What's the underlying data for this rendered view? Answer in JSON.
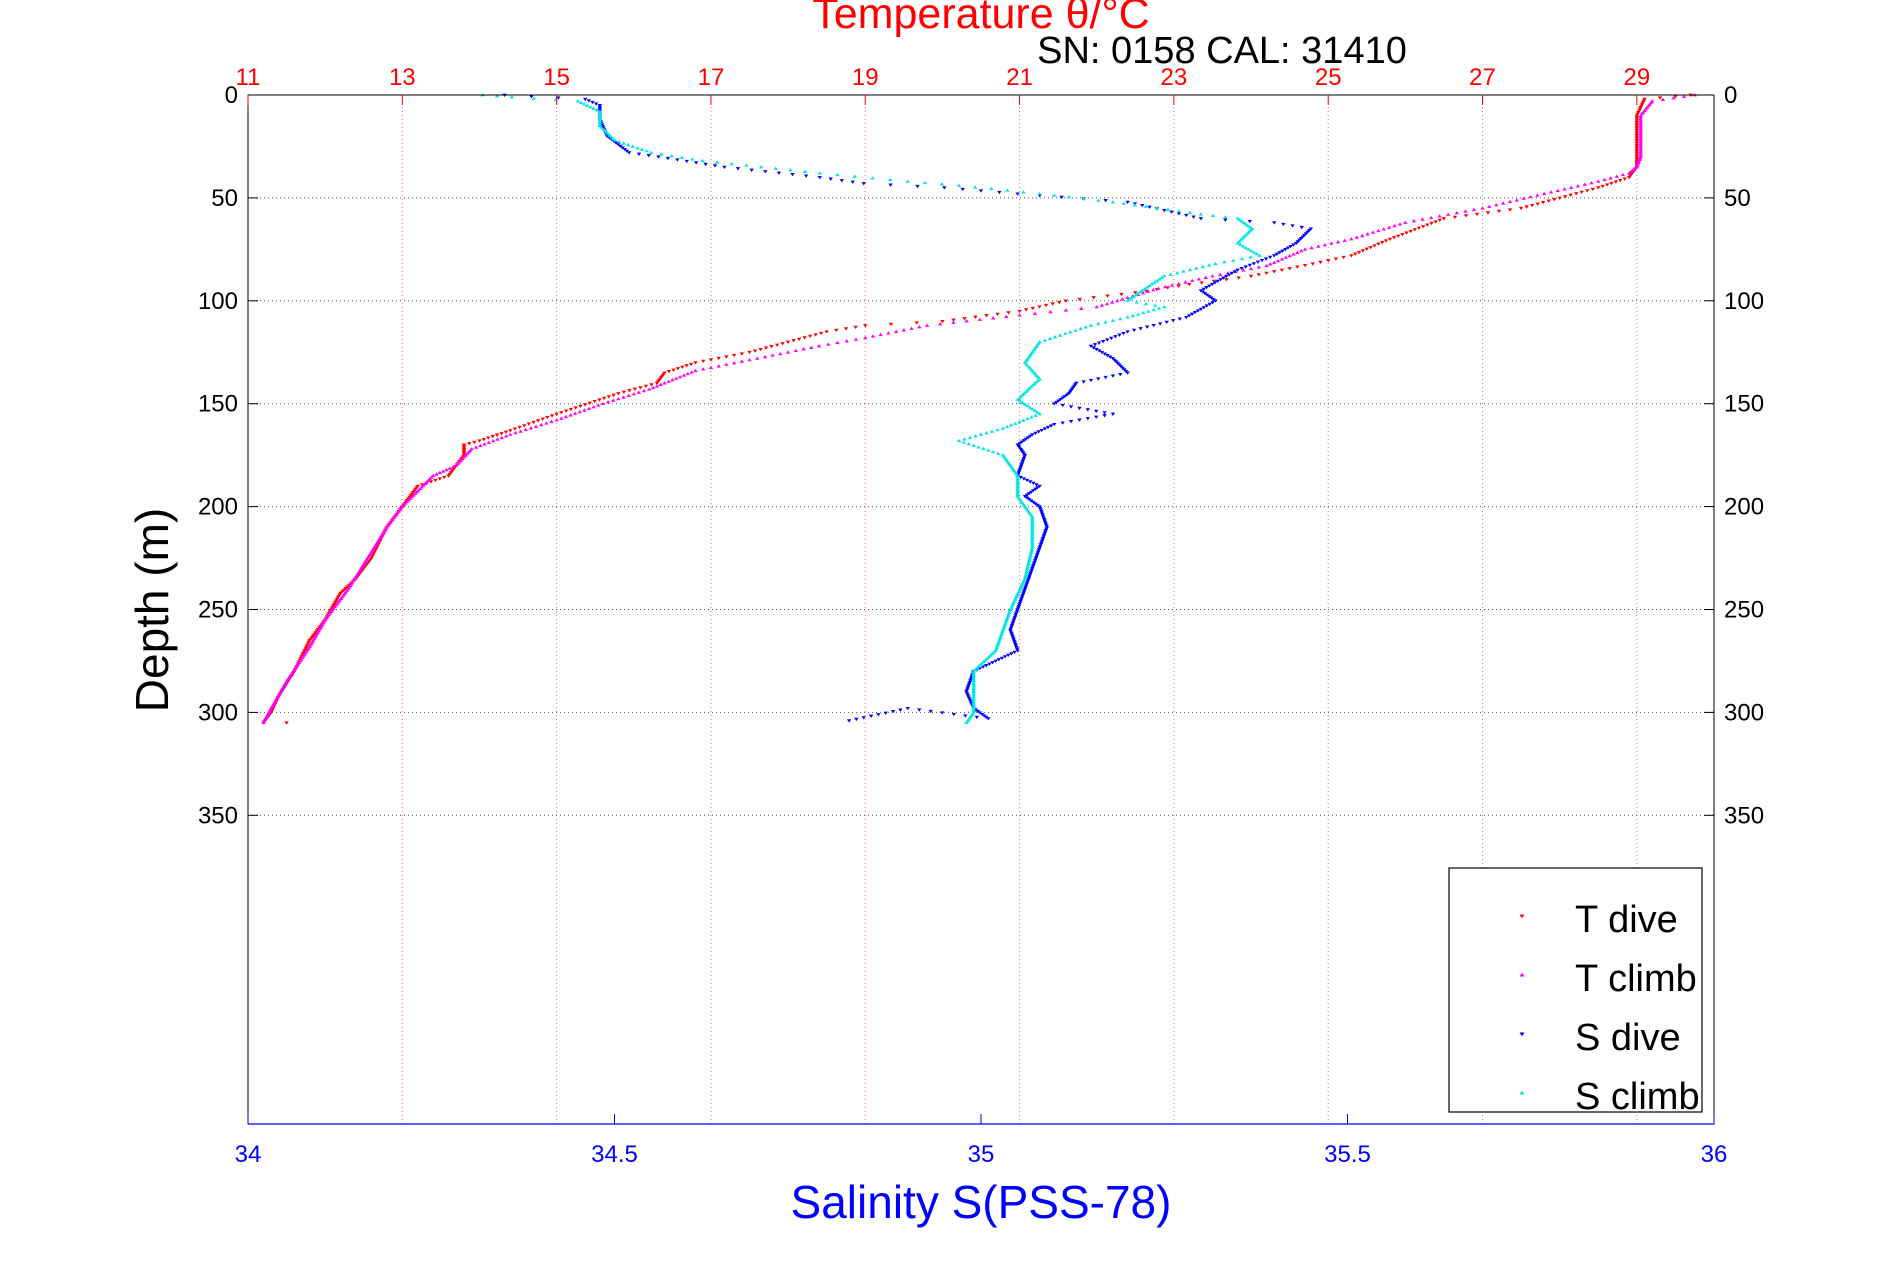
{
  "chart_data": {
    "type": "scatter",
    "top_axis": {
      "label": "Temperature θ/°C",
      "range": [
        11,
        30
      ],
      "ticks": [
        "11",
        "13",
        "15",
        "17",
        "19",
        "21",
        "23",
        "25",
        "27",
        "29"
      ],
      "tick_values": [
        11,
        13,
        15,
        17,
        19,
        21,
        23,
        25,
        27,
        29
      ],
      "color": "#ff0000"
    },
    "bottom_axis": {
      "label": "Salinity S(PSS-78)",
      "range": [
        34,
        36
      ],
      "ticks": [
        "34",
        "34.5",
        "35",
        "35.5",
        "36"
      ],
      "tick_values": [
        34,
        34.5,
        35,
        35.5,
        36
      ],
      "color": "#0000ff"
    },
    "y_axis": {
      "label": "Depth (m)",
      "range": [
        0,
        500
      ],
      "reversed": true,
      "ticks": [
        "0",
        "50",
        "100",
        "150",
        "200",
        "250",
        "300",
        "350"
      ],
      "tick_values": [
        0,
        50,
        100,
        150,
        200,
        250,
        300,
        350
      ]
    },
    "annotation": "SN: 0158  CAL: 31410",
    "grid": true,
    "legend_position": "bottom-right",
    "series": [
      {
        "name": "T dive",
        "axis": "temperature",
        "color": "#ff0000",
        "marker": "triangle-down",
        "points": [
          [
            29.7,
            0
          ],
          [
            29.1,
            2
          ],
          [
            29.0,
            10
          ],
          [
            29.0,
            30
          ],
          [
            29.0,
            35
          ],
          [
            28.9,
            40
          ],
          [
            28.5,
            45
          ],
          [
            28.0,
            50
          ],
          [
            27.5,
            55
          ],
          [
            26.5,
            60
          ],
          [
            25.8,
            70
          ],
          [
            25.3,
            78
          ],
          [
            24.8,
            82
          ],
          [
            24.0,
            88
          ],
          [
            23.2,
            92
          ],
          [
            22.5,
            96
          ],
          [
            21.6,
            100
          ],
          [
            21.0,
            105
          ],
          [
            20.0,
            110
          ],
          [
            19.0,
            112
          ],
          [
            18.5,
            115
          ],
          [
            18.0,
            120
          ],
          [
            17.5,
            125
          ],
          [
            16.8,
            130
          ],
          [
            16.4,
            135
          ],
          [
            16.3,
            140
          ],
          [
            15.8,
            145
          ],
          [
            15.0,
            155
          ],
          [
            14.4,
            163
          ],
          [
            14.0,
            168
          ],
          [
            13.8,
            170
          ],
          [
            13.8,
            175
          ],
          [
            13.6,
            185
          ],
          [
            13.2,
            190
          ],
          [
            13.0,
            200
          ],
          [
            12.8,
            210
          ],
          [
            12.6,
            225
          ],
          [
            12.4,
            235
          ],
          [
            12.2,
            242
          ],
          [
            12.0,
            255
          ],
          [
            11.8,
            265
          ],
          [
            11.6,
            280
          ],
          [
            11.4,
            292
          ],
          [
            11.3,
            300
          ],
          [
            11.2,
            305
          ],
          [
            11.5,
            305
          ]
        ]
      },
      {
        "name": "T climb",
        "axis": "temperature",
        "color": "#ff00ff",
        "marker": "triangle-up",
        "points": [
          [
            29.75,
            0
          ],
          [
            29.2,
            3
          ],
          [
            29.05,
            10
          ],
          [
            29.05,
            30
          ],
          [
            29.0,
            35
          ],
          [
            28.9,
            38
          ],
          [
            28.5,
            42
          ],
          [
            27.8,
            48
          ],
          [
            27.0,
            55
          ],
          [
            26.0,
            62
          ],
          [
            25.3,
            70
          ],
          [
            24.7,
            75
          ],
          [
            24.2,
            83
          ],
          [
            23.5,
            88
          ],
          [
            22.8,
            94
          ],
          [
            22.0,
            103
          ],
          [
            21.0,
            107
          ],
          [
            19.8,
            112
          ],
          [
            19.0,
            118
          ],
          [
            18.4,
            122
          ],
          [
            17.6,
            128
          ],
          [
            16.8,
            134
          ],
          [
            16.2,
            143
          ],
          [
            15.6,
            150
          ],
          [
            15.0,
            158
          ],
          [
            14.4,
            165
          ],
          [
            13.9,
            172
          ],
          [
            13.7,
            180
          ],
          [
            13.4,
            185
          ],
          [
            13.0,
            200
          ],
          [
            12.8,
            210
          ],
          [
            12.5,
            228
          ],
          [
            12.3,
            240
          ],
          [
            12.0,
            255
          ],
          [
            11.8,
            268
          ],
          [
            11.5,
            285
          ],
          [
            11.3,
            298
          ],
          [
            11.2,
            305
          ]
        ]
      },
      {
        "name": "S dive",
        "axis": "salinity",
        "color": "#0000ff",
        "marker": "triangle-down",
        "points": [
          [
            34.35,
            0
          ],
          [
            34.46,
            2
          ],
          [
            34.48,
            5
          ],
          [
            34.48,
            12
          ],
          [
            34.49,
            20
          ],
          [
            34.52,
            28
          ],
          [
            34.56,
            30
          ],
          [
            34.65,
            35
          ],
          [
            34.78,
            40
          ],
          [
            34.84,
            43
          ],
          [
            34.95,
            45
          ],
          [
            35.05,
            48
          ],
          [
            35.2,
            52
          ],
          [
            35.3,
            60
          ],
          [
            35.4,
            62
          ],
          [
            35.45,
            65
          ],
          [
            35.43,
            72
          ],
          [
            35.4,
            78
          ],
          [
            35.35,
            85
          ],
          [
            35.3,
            95
          ],
          [
            35.32,
            100
          ],
          [
            35.28,
            108
          ],
          [
            35.2,
            115
          ],
          [
            35.15,
            122
          ],
          [
            35.18,
            128
          ],
          [
            35.2,
            135
          ],
          [
            35.13,
            140
          ],
          [
            35.12,
            145
          ],
          [
            35.1,
            150
          ],
          [
            35.18,
            155
          ],
          [
            35.1,
            160
          ],
          [
            35.07,
            165
          ],
          [
            35.05,
            170
          ],
          [
            35.06,
            175
          ],
          [
            35.05,
            185
          ],
          [
            35.08,
            190
          ],
          [
            35.06,
            195
          ],
          [
            35.08,
            200
          ],
          [
            35.09,
            210
          ],
          [
            35.08,
            220
          ],
          [
            35.07,
            230
          ],
          [
            35.06,
            240
          ],
          [
            35.05,
            250
          ],
          [
            35.04,
            260
          ],
          [
            35.05,
            270
          ],
          [
            35.02,
            275
          ],
          [
            34.99,
            280
          ],
          [
            34.98,
            290
          ],
          [
            34.99,
            298
          ],
          [
            35.01,
            303
          ],
          [
            34.9,
            298
          ],
          [
            34.82,
            304
          ]
        ]
      },
      {
        "name": "S climb",
        "axis": "salinity",
        "color": "#00e5e5",
        "marker": "triangle-up",
        "points": [
          [
            34.32,
            0
          ],
          [
            34.36,
            1
          ],
          [
            34.45,
            3
          ],
          [
            34.48,
            8
          ],
          [
            34.48,
            15
          ],
          [
            34.5,
            22
          ],
          [
            34.55,
            28
          ],
          [
            34.62,
            32
          ],
          [
            34.7,
            35
          ],
          [
            34.78,
            38
          ],
          [
            34.9,
            42
          ],
          [
            34.97,
            44
          ],
          [
            35.08,
            48
          ],
          [
            35.18,
            52
          ],
          [
            35.3,
            58
          ],
          [
            35.35,
            60
          ],
          [
            35.37,
            65
          ],
          [
            35.35,
            72
          ],
          [
            35.38,
            78
          ],
          [
            35.32,
            82
          ],
          [
            35.25,
            88
          ],
          [
            35.22,
            95
          ],
          [
            35.2,
            100
          ],
          [
            35.25,
            103
          ],
          [
            35.2,
            108
          ],
          [
            35.15,
            112
          ],
          [
            35.08,
            120
          ],
          [
            35.06,
            130
          ],
          [
            35.08,
            138
          ],
          [
            35.05,
            148
          ],
          [
            35.08,
            155
          ],
          [
            35.03,
            162
          ],
          [
            34.97,
            168
          ],
          [
            35.03,
            175
          ],
          [
            35.05,
            185
          ],
          [
            35.05,
            195
          ],
          [
            35.07,
            205
          ],
          [
            35.07,
            220
          ],
          [
            35.06,
            235
          ],
          [
            35.04,
            250
          ],
          [
            35.03,
            260
          ],
          [
            35.02,
            270
          ],
          [
            34.99,
            280
          ],
          [
            34.99,
            290
          ],
          [
            34.99,
            300
          ],
          [
            34.98,
            305
          ]
        ]
      }
    ]
  }
}
